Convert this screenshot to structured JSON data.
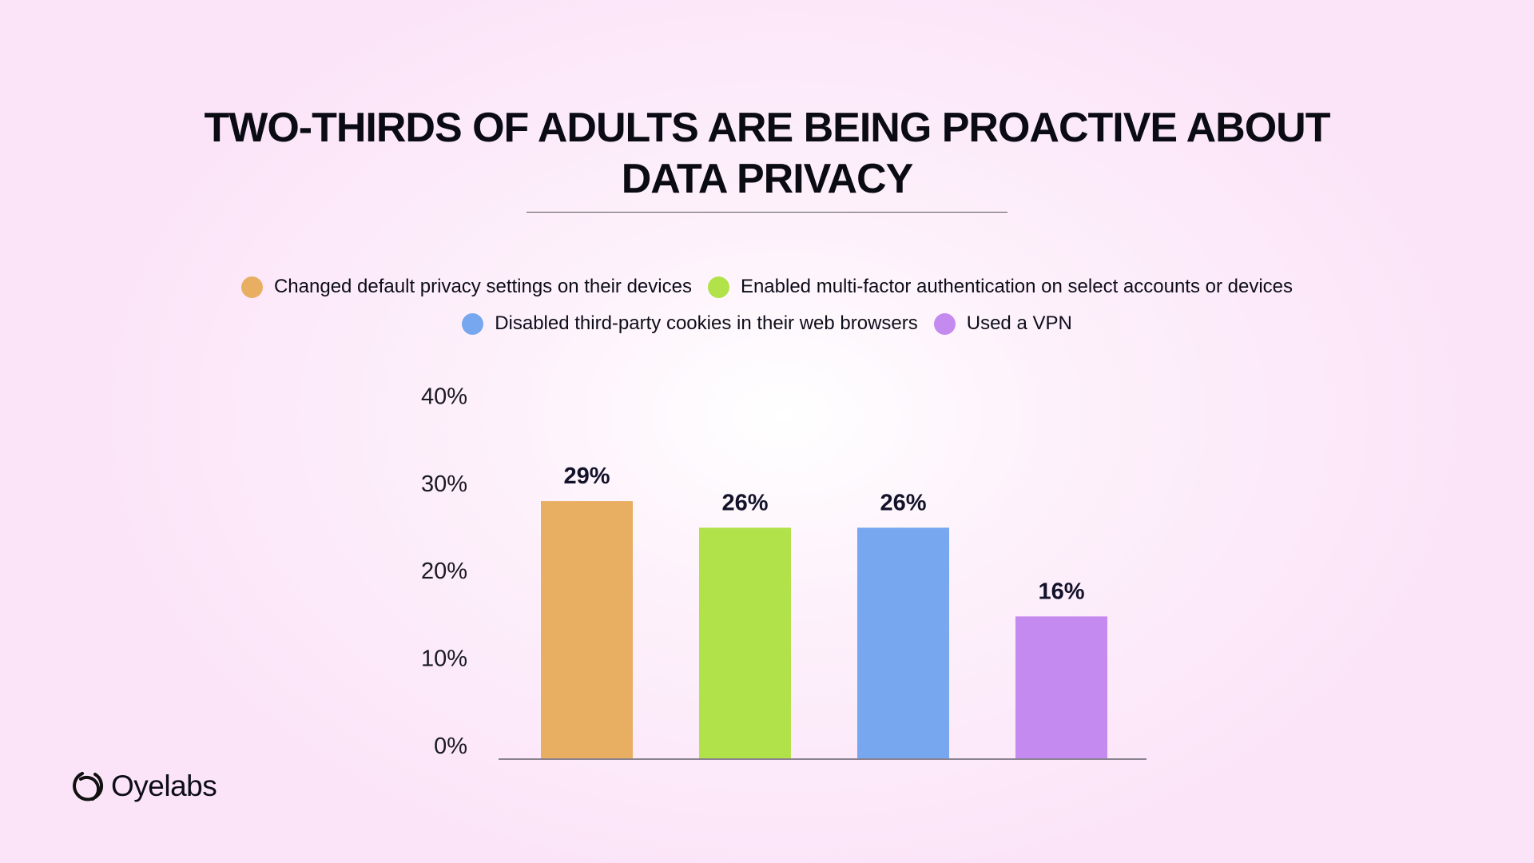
{
  "chart_data": {
    "type": "bar",
    "title": "TWO-THIRDS OF ADULTS ARE BEING PROACTIVE ABOUT DATA PRIVACY",
    "categories": [
      "Changed default privacy settings on their devices",
      "Enabled multi-factor authentication on select accounts or devices",
      "Disabled third-party cookies in their web browsers",
      "Used a VPN"
    ],
    "values": [
      29,
      26,
      26,
      16
    ],
    "data_labels": [
      "29%",
      "26%",
      "26%",
      "16%"
    ],
    "colors": [
      "#e8ae62",
      "#b1e24a",
      "#77a7ee",
      "#c58af0"
    ],
    "ylim": [
      0,
      40
    ],
    "yticks": [
      0,
      10,
      20,
      30,
      40
    ],
    "ytick_labels": [
      "0%",
      "10%",
      "20%",
      "30%",
      "40%"
    ],
    "xlabel": "",
    "ylabel": "",
    "grid": false,
    "legend_position": "top"
  },
  "title_line1": "TWO-THIRDS OF ADULTS ARE BEING PROACTIVE ABOUT",
  "title_line2": "DATA PRIVACY",
  "brand": {
    "name": "Oyelabs",
    "icon": "oyelabs-logo-icon"
  }
}
